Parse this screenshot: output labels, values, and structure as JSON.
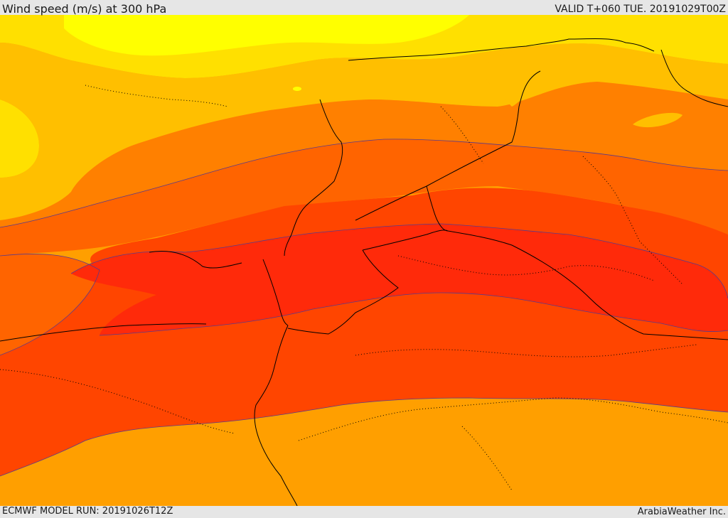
{
  "header": {
    "title": "Wind speed (m/s) at 300 hPa",
    "valid": "VALID T+060 TUE. 20191029T00Z"
  },
  "footer": {
    "model_run": "ECMWF MODEL RUN: 20191026T12Z",
    "credit": "ArabiaWeather Inc."
  },
  "map": {
    "field": "wind-speed-300hPa",
    "colors": {
      "band_1": "#ffff00",
      "band_2": "#ffe000",
      "band_3": "#ffbf00",
      "band_4": "#ff9f00",
      "band_5": "#ff8000",
      "band_6": "#ff6400",
      "band_7": "#ff4500",
      "band_8": "#ff2a0a",
      "border": "#000000",
      "contour": "#5a3a8a"
    }
  }
}
